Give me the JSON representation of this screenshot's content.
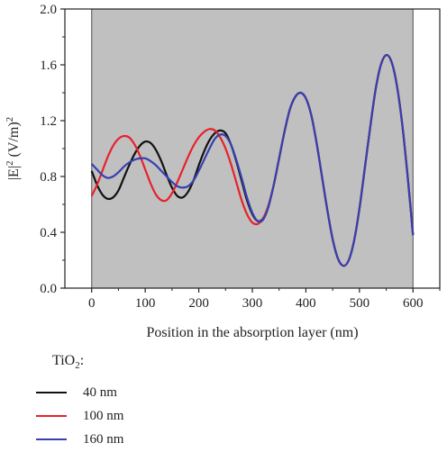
{
  "chart_data": {
    "type": "line",
    "xlabel": "Position in the absorption layer (nm)",
    "ylabel": "|E|",
    "ylabel_sup": "2",
    "ylabel_unit": " (V/m)",
    "ylabel_unit_sup": "2",
    "xlim": [
      -50,
      650
    ],
    "ylim": [
      0.0,
      2.0
    ],
    "xticks": [
      "0",
      "100",
      "200",
      "300",
      "400",
      "500",
      "600"
    ],
    "yticks": [
      "0.0",
      "0.4",
      "0.8",
      "1.2",
      "1.6",
      "2.0"
    ],
    "shaded_region": [
      0,
      600
    ],
    "legend_title": "TiO",
    "legend_title_sub": "2",
    "legend_title_suffix": ":",
    "series": [
      {
        "name": "40 nm",
        "color": "#111111",
        "points": [
          [
            0,
            0.84
          ],
          [
            10,
            0.74
          ],
          [
            20,
            0.67
          ],
          [
            30,
            0.64
          ],
          [
            40,
            0.65
          ],
          [
            50,
            0.7
          ],
          [
            60,
            0.79
          ],
          [
            70,
            0.88
          ],
          [
            80,
            0.96
          ],
          [
            90,
            1.02
          ],
          [
            100,
            1.05
          ],
          [
            110,
            1.04
          ],
          [
            120,
            0.99
          ],
          [
            130,
            0.91
          ],
          [
            140,
            0.81
          ],
          [
            150,
            0.72
          ],
          [
            160,
            0.66
          ],
          [
            170,
            0.65
          ],
          [
            180,
            0.69
          ],
          [
            190,
            0.77
          ],
          [
            200,
            0.88
          ],
          [
            210,
            0.98
          ],
          [
            220,
            1.06
          ],
          [
            230,
            1.11
          ],
          [
            240,
            1.13
          ],
          [
            250,
            1.11
          ],
          [
            260,
            1.03
          ],
          [
            270,
            0.91
          ],
          [
            280,
            0.77
          ],
          [
            290,
            0.63
          ],
          [
            300,
            0.53
          ],
          [
            310,
            0.48
          ],
          [
            320,
            0.5
          ],
          [
            330,
            0.59
          ],
          [
            340,
            0.74
          ],
          [
            350,
            0.93
          ],
          [
            360,
            1.12
          ],
          [
            370,
            1.28
          ],
          [
            380,
            1.37
          ],
          [
            390,
            1.4
          ],
          [
            400,
            1.36
          ],
          [
            410,
            1.24
          ],
          [
            420,
            1.04
          ],
          [
            430,
            0.8
          ],
          [
            440,
            0.56
          ],
          [
            450,
            0.35
          ],
          [
            460,
            0.21
          ],
          [
            470,
            0.16
          ],
          [
            480,
            0.2
          ],
          [
            490,
            0.34
          ],
          [
            500,
            0.57
          ],
          [
            510,
            0.86
          ],
          [
            520,
            1.15
          ],
          [
            530,
            1.42
          ],
          [
            540,
            1.6
          ],
          [
            550,
            1.67
          ],
          [
            560,
            1.62
          ],
          [
            570,
            1.45
          ],
          [
            580,
            1.17
          ],
          [
            590,
            0.8
          ],
          [
            600,
            0.38
          ]
        ]
      },
      {
        "name": "100 nm",
        "color": "#e8212a",
        "points": [
          [
            0,
            0.66
          ],
          [
            10,
            0.74
          ],
          [
            20,
            0.84
          ],
          [
            30,
            0.94
          ],
          [
            40,
            1.02
          ],
          [
            50,
            1.07
          ],
          [
            60,
            1.09
          ],
          [
            70,
            1.08
          ],
          [
            80,
            1.03
          ],
          [
            90,
            0.95
          ],
          [
            100,
            0.85
          ],
          [
            110,
            0.75
          ],
          [
            120,
            0.67
          ],
          [
            130,
            0.63
          ],
          [
            140,
            0.63
          ],
          [
            150,
            0.68
          ],
          [
            160,
            0.76
          ],
          [
            170,
            0.85
          ],
          [
            180,
            0.94
          ],
          [
            190,
            1.02
          ],
          [
            200,
            1.08
          ],
          [
            210,
            1.12
          ],
          [
            220,
            1.14
          ],
          [
            230,
            1.13
          ],
          [
            240,
            1.08
          ],
          [
            250,
            1.0
          ],
          [
            260,
            0.89
          ],
          [
            270,
            0.76
          ],
          [
            280,
            0.63
          ],
          [
            290,
            0.53
          ],
          [
            300,
            0.47
          ],
          [
            310,
            0.46
          ],
          [
            320,
            0.5
          ],
          [
            330,
            0.59
          ],
          [
            340,
            0.74
          ],
          [
            350,
            0.93
          ],
          [
            360,
            1.12
          ],
          [
            370,
            1.28
          ],
          [
            380,
            1.37
          ],
          [
            390,
            1.4
          ],
          [
            400,
            1.36
          ],
          [
            410,
            1.24
          ],
          [
            420,
            1.04
          ],
          [
            430,
            0.8
          ],
          [
            440,
            0.56
          ],
          [
            450,
            0.35
          ],
          [
            460,
            0.21
          ],
          [
            470,
            0.16
          ],
          [
            480,
            0.2
          ],
          [
            490,
            0.34
          ],
          [
            500,
            0.57
          ],
          [
            510,
            0.86
          ],
          [
            520,
            1.15
          ],
          [
            530,
            1.42
          ],
          [
            540,
            1.6
          ],
          [
            550,
            1.67
          ],
          [
            560,
            1.62
          ],
          [
            570,
            1.45
          ],
          [
            580,
            1.17
          ],
          [
            590,
            0.8
          ],
          [
            600,
            0.38
          ]
        ]
      },
      {
        "name": "160 nm",
        "color": "#3640b0",
        "points": [
          [
            0,
            0.89
          ],
          [
            10,
            0.85
          ],
          [
            20,
            0.81
          ],
          [
            30,
            0.79
          ],
          [
            40,
            0.8
          ],
          [
            50,
            0.83
          ],
          [
            60,
            0.87
          ],
          [
            70,
            0.9
          ],
          [
            80,
            0.92
          ],
          [
            90,
            0.93
          ],
          [
            100,
            0.93
          ],
          [
            110,
            0.91
          ],
          [
            120,
            0.88
          ],
          [
            130,
            0.84
          ],
          [
            140,
            0.8
          ],
          [
            150,
            0.76
          ],
          [
            160,
            0.73
          ],
          [
            170,
            0.72
          ],
          [
            180,
            0.73
          ],
          [
            190,
            0.77
          ],
          [
            200,
            0.84
          ],
          [
            210,
            0.92
          ],
          [
            220,
            1.0
          ],
          [
            230,
            1.07
          ],
          [
            240,
            1.1
          ],
          [
            250,
            1.09
          ],
          [
            260,
            1.03
          ],
          [
            270,
            0.92
          ],
          [
            280,
            0.79
          ],
          [
            290,
            0.65
          ],
          [
            300,
            0.54
          ],
          [
            310,
            0.48
          ],
          [
            320,
            0.49
          ],
          [
            330,
            0.58
          ],
          [
            340,
            0.74
          ],
          [
            350,
            0.93
          ],
          [
            360,
            1.12
          ],
          [
            370,
            1.28
          ],
          [
            380,
            1.37
          ],
          [
            390,
            1.4
          ],
          [
            400,
            1.36
          ],
          [
            410,
            1.24
          ],
          [
            420,
            1.04
          ],
          [
            430,
            0.8
          ],
          [
            440,
            0.56
          ],
          [
            450,
            0.35
          ],
          [
            460,
            0.21
          ],
          [
            470,
            0.16
          ],
          [
            480,
            0.2
          ],
          [
            490,
            0.34
          ],
          [
            500,
            0.57
          ],
          [
            510,
            0.86
          ],
          [
            520,
            1.15
          ],
          [
            530,
            1.42
          ],
          [
            540,
            1.6
          ],
          [
            550,
            1.67
          ],
          [
            560,
            1.62
          ],
          [
            570,
            1.45
          ],
          [
            580,
            1.17
          ],
          [
            590,
            0.8
          ],
          [
            600,
            0.38
          ]
        ]
      }
    ]
  }
}
